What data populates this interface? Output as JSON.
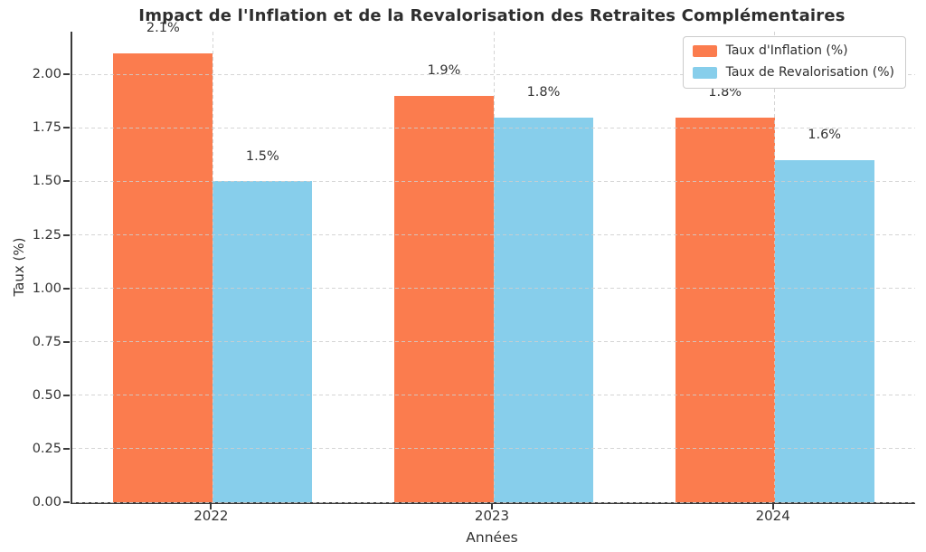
{
  "chart_data": {
    "type": "bar",
    "title": "Impact de l'Inflation et de la Revalorisation des Retraites Complémentaires",
    "xlabel": "Années",
    "ylabel": "Taux (%)",
    "categories": [
      "2022",
      "2023",
      "2024"
    ],
    "series": [
      {
        "name": "Taux d'Inflation (%)",
        "color": "#FB7C4E",
        "values": [
          2.1,
          1.9,
          1.8
        ],
        "bar_labels": [
          "2.1%",
          "1.9%",
          "1.8%"
        ]
      },
      {
        "name": "Taux de Revalorisation (%)",
        "color": "#87CEEB",
        "values": [
          1.5,
          1.8,
          1.6
        ],
        "bar_labels": [
          "1.5%",
          "1.8%",
          "1.6%"
        ]
      }
    ],
    "ylim": [
      0,
      2.2
    ],
    "yticks": [
      "0.00",
      "0.25",
      "0.50",
      "0.75",
      "1.00",
      "1.25",
      "1.50",
      "1.75",
      "2.00"
    ],
    "grid": "dashed",
    "legend_position": "top-right"
  },
  "styles": {
    "grid_color": "#cccccc",
    "axis_color": "#3a3a3a",
    "text_color": "#333333",
    "background": "#ffffff"
  }
}
